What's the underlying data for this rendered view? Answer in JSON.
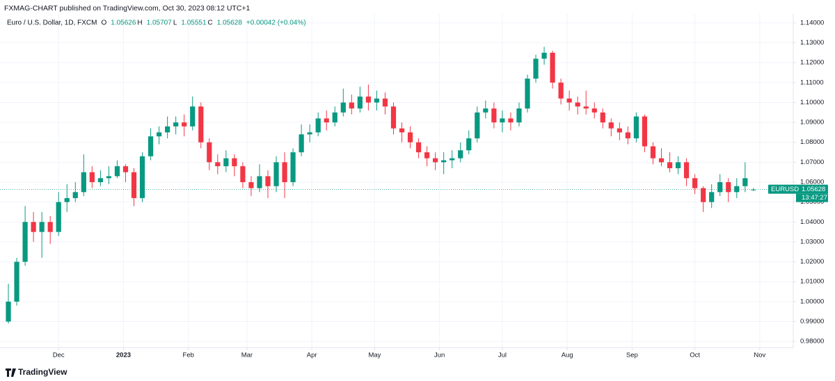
{
  "chart_data": {
    "type": "candlestick",
    "title": "FXMAG-CHART published on TradingView.com, Oct 30, 2023 08:12 UTC+1",
    "legend": {
      "symbol": "Euro / U.S. Dollar, 1D, FXCM",
      "open_label": "O",
      "high_label": "H",
      "low_label": "L",
      "close_label": "C",
      "change": "+0.00042 (+0.04%)"
    },
    "price_tag": {
      "ticker": "EURUSD",
      "countdown": "13:47:27"
    },
    "brand": "TradingView",
    "up_color": "#089981",
    "down_color": "#f23645",
    "grid": true,
    "xlim": [
      -28,
      351
    ],
    "ylim": [
      0.9769,
      1.1445
    ],
    "xticks": [
      {
        "value": 0,
        "label": "Dec"
      },
      {
        "value": 31,
        "label": "2023"
      },
      {
        "value": 62,
        "label": "Feb"
      },
      {
        "value": 90,
        "label": "Mar"
      },
      {
        "value": 121,
        "label": "Apr"
      },
      {
        "value": 151,
        "label": "May"
      },
      {
        "value": 182,
        "label": "Jun"
      },
      {
        "value": 212,
        "label": "Jul"
      },
      {
        "value": 243,
        "label": "Aug"
      },
      {
        "value": 274,
        "label": "Sep"
      },
      {
        "value": 304,
        "label": "Oct"
      },
      {
        "value": 335,
        "label": "Nov"
      }
    ],
    "yticks": [
      {
        "value": 0.98,
        "label": "0.98000"
      },
      {
        "value": 0.99,
        "label": "0.99000"
      },
      {
        "value": 1.0,
        "label": "1.00000"
      },
      {
        "value": 1.01,
        "label": "1.01000"
      },
      {
        "value": 1.02,
        "label": "1.02000"
      },
      {
        "value": 1.03,
        "label": "1.03000"
      },
      {
        "value": 1.04,
        "label": "1.04000"
      },
      {
        "value": 1.05,
        "label": "1.05000"
      },
      {
        "value": 1.06,
        "label": "1.06000"
      },
      {
        "value": 1.07,
        "label": "1.07000"
      },
      {
        "value": 1.08,
        "label": "1.08000"
      },
      {
        "value": 1.09,
        "label": "1.09000"
      },
      {
        "value": 1.1,
        "label": "1.10000"
      },
      {
        "value": 1.11,
        "label": "1.11000"
      },
      {
        "value": 1.12,
        "label": "1.12000"
      },
      {
        "value": 1.13,
        "label": "1.13000"
      },
      {
        "value": 1.14,
        "label": "1.14000"
      }
    ],
    "x": [
      -24,
      -20,
      -16,
      -12,
      -8,
      -4,
      0,
      4,
      8,
      12,
      16,
      20,
      24,
      28,
      32,
      36,
      40,
      44,
      48,
      52,
      56,
      60,
      64,
      68,
      72,
      76,
      80,
      84,
      88,
      92,
      96,
      100,
      104,
      108,
      112,
      116,
      120,
      124,
      128,
      132,
      136,
      140,
      144,
      148,
      152,
      156,
      160,
      164,
      168,
      172,
      176,
      180,
      184,
      188,
      192,
      196,
      200,
      204,
      208,
      212,
      216,
      220,
      224,
      228,
      232,
      236,
      240,
      244,
      248,
      252,
      256,
      260,
      264,
      268,
      272,
      276,
      280,
      284,
      288,
      292,
      296,
      300,
      304,
      308,
      312,
      316,
      320,
      324,
      328,
      332
    ],
    "open": [
      0.99,
      1.0,
      1.02,
      1.04,
      1.035,
      1.04,
      1.035,
      1.05,
      1.052,
      1.055,
      1.065,
      1.06,
      1.062,
      1.063,
      1.068,
      1.065,
      1.052,
      1.073,
      1.083,
      1.085,
      1.088,
      1.09,
      1.088,
      1.098,
      1.08,
      1.07,
      1.068,
      1.072,
      1.068,
      1.06,
      1.057,
      1.063,
      1.058,
      1.07,
      1.06,
      1.075,
      1.084,
      1.085,
      1.092,
      1.09,
      1.095,
      1.1,
      1.097,
      1.103,
      1.1,
      1.102,
      1.098,
      1.087,
      1.085,
      1.08,
      1.075,
      1.072,
      1.07,
      1.071,
      1.072,
      1.076,
      1.082,
      1.095,
      1.097,
      1.09,
      1.092,
      1.09,
      1.097,
      1.112,
      1.122,
      1.125,
      1.11,
      1.102,
      1.1,
      1.098,
      1.097,
      1.095,
      1.09,
      1.087,
      1.085,
      1.082,
      1.093,
      1.078,
      1.072,
      1.07,
      1.067,
      1.07,
      1.062,
      1.057,
      1.05,
      1.055,
      1.06,
      1.055,
      1.058,
      1.05626
    ],
    "high": [
      1.009,
      1.022,
      1.048,
      1.045,
      1.045,
      1.043,
      1.055,
      1.059,
      1.06,
      1.074,
      1.068,
      1.066,
      1.068,
      1.071,
      1.069,
      1.067,
      1.075,
      1.087,
      1.088,
      1.093,
      1.093,
      1.094,
      1.103,
      1.1,
      1.082,
      1.074,
      1.076,
      1.074,
      1.07,
      1.063,
      1.069,
      1.066,
      1.073,
      1.075,
      1.077,
      1.089,
      1.089,
      1.095,
      1.096,
      1.098,
      1.107,
      1.104,
      1.108,
      1.109,
      1.106,
      1.105,
      1.1,
      1.09,
      1.088,
      1.082,
      1.078,
      1.075,
      1.075,
      1.076,
      1.08,
      1.086,
      1.098,
      1.101,
      1.1,
      1.096,
      1.095,
      1.1,
      1.114,
      1.124,
      1.128,
      1.126,
      1.112,
      1.106,
      1.103,
      1.106,
      1.1,
      1.097,
      1.092,
      1.09,
      1.088,
      1.095,
      1.094,
      1.08,
      1.077,
      1.075,
      1.073,
      1.072,
      1.064,
      1.058,
      1.059,
      1.064,
      1.062,
      1.062,
      1.07,
      1.05707
    ],
    "low": [
      0.989,
      0.998,
      1.018,
      1.03,
      1.022,
      1.029,
      1.033,
      1.045,
      1.05,
      1.053,
      1.057,
      1.058,
      1.059,
      1.062,
      1.06,
      1.048,
      1.05,
      1.071,
      1.079,
      1.082,
      1.084,
      1.083,
      1.086,
      1.077,
      1.066,
      1.064,
      1.065,
      1.063,
      1.057,
      1.053,
      1.055,
      1.052,
      1.055,
      1.052,
      1.058,
      1.073,
      1.08,
      1.083,
      1.086,
      1.088,
      1.093,
      1.094,
      1.095,
      1.096,
      1.096,
      1.094,
      1.084,
      1.08,
      1.077,
      1.072,
      1.068,
      1.066,
      1.064,
      1.067,
      1.07,
      1.074,
      1.08,
      1.092,
      1.087,
      1.085,
      1.086,
      1.088,
      1.095,
      1.11,
      1.119,
      1.107,
      1.099,
      1.096,
      1.094,
      1.094,
      1.092,
      1.087,
      1.083,
      1.081,
      1.079,
      1.08,
      1.075,
      1.069,
      1.068,
      1.065,
      1.064,
      1.058,
      1.054,
      1.045,
      1.047,
      1.053,
      1.05,
      1.052,
      1.055,
      1.05551
    ],
    "close": [
      1.0,
      1.02,
      1.04,
      1.035,
      1.04,
      1.035,
      1.05,
      1.052,
      1.055,
      1.065,
      1.06,
      1.062,
      1.063,
      1.068,
      1.065,
      1.052,
      1.073,
      1.083,
      1.085,
      1.088,
      1.09,
      1.088,
      1.098,
      1.08,
      1.07,
      1.068,
      1.072,
      1.068,
      1.06,
      1.057,
      1.063,
      1.058,
      1.07,
      1.06,
      1.075,
      1.084,
      1.085,
      1.092,
      1.09,
      1.095,
      1.1,
      1.097,
      1.103,
      1.1,
      1.102,
      1.098,
      1.087,
      1.085,
      1.08,
      1.075,
      1.072,
      1.07,
      1.071,
      1.072,
      1.076,
      1.082,
      1.095,
      1.097,
      1.09,
      1.092,
      1.09,
      1.097,
      1.112,
      1.122,
      1.125,
      1.11,
      1.102,
      1.1,
      1.098,
      1.097,
      1.095,
      1.09,
      1.087,
      1.085,
      1.082,
      1.093,
      1.078,
      1.072,
      1.07,
      1.067,
      1.07,
      1.062,
      1.057,
      1.05,
      1.055,
      1.06,
      1.055,
      1.058,
      1.062,
      1.05628
    ]
  }
}
